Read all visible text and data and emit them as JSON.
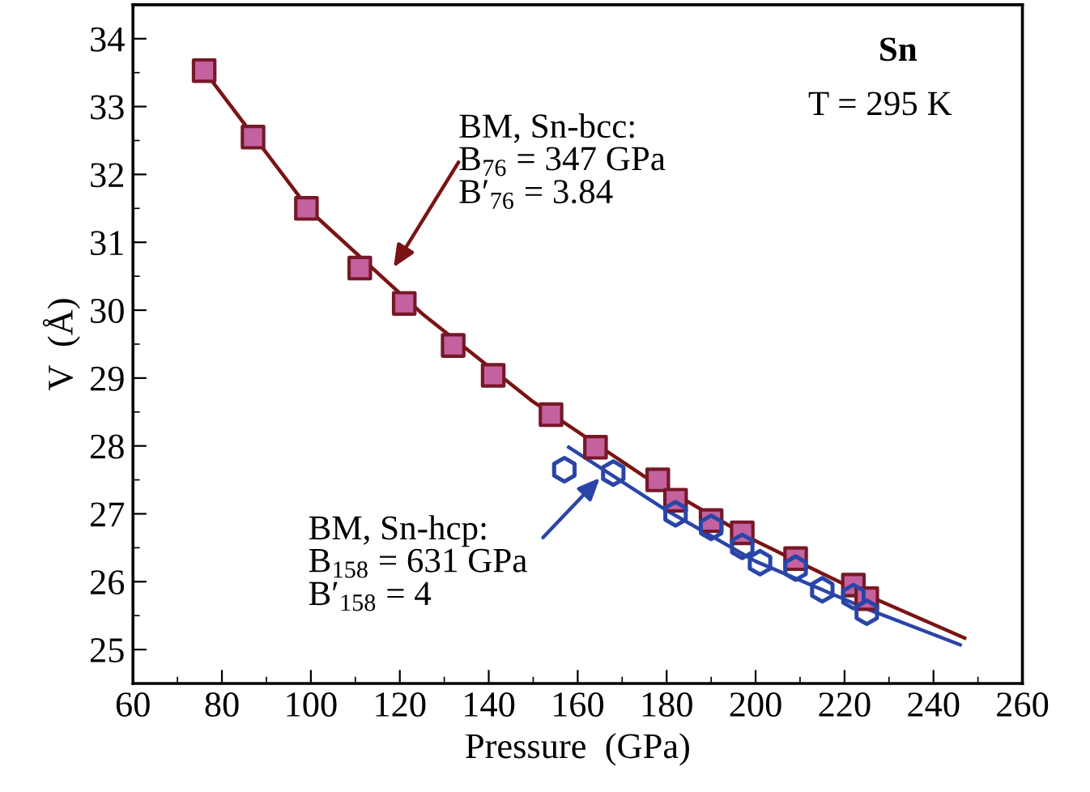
{
  "chart_data": {
    "type": "scatter",
    "xlabel": "Pressure  (GPa)",
    "ylabel": "V  (Å)",
    "xlim": [
      60,
      260
    ],
    "xticks": [
      60,
      80,
      100,
      120,
      140,
      160,
      180,
      200,
      220,
      240,
      260
    ],
    "ylim": [
      24.5,
      34.5
    ],
    "yticks": [
      25,
      26,
      27,
      28,
      29,
      30,
      31,
      32,
      33,
      34
    ],
    "grid": false,
    "series": [
      {
        "marker": "square",
        "color": "#c462a0",
        "x": [
          76,
          87,
          99,
          111,
          121,
          132,
          141,
          154,
          164,
          178,
          182,
          190,
          197,
          209,
          222,
          225
        ],
        "values": [
          33.53,
          32.55,
          31.5,
          30.62,
          30.1,
          29.48,
          29.04,
          28.46,
          27.98,
          27.5,
          27.2,
          26.9,
          26.72,
          26.34,
          25.95,
          25.75
        ]
      },
      {
        "color": "#2a45a8",
        "x": [
          157,
          168,
          182,
          190,
          197,
          201,
          209,
          215,
          222,
          225
        ],
        "values": [
          27.65,
          27.6,
          27.0,
          26.8,
          26.52,
          26.28,
          26.2,
          25.88,
          25.78,
          25.55
        ]
      },
      {
        "type": "line",
        "marker": "none",
        "color": "#7a1414",
        "x": [
          76,
          100,
          125,
          150,
          175,
          200,
          225,
          247
        ],
        "values": [
          33.53,
          31.45,
          29.95,
          28.65,
          27.55,
          26.6,
          25.8,
          25.17
        ]
      },
      {
        "type": "line",
        "marker": "none",
        "color": "#2a45a8",
        "x": [
          158,
          180,
          200,
          225,
          246
        ],
        "values": [
          27.98,
          27.05,
          26.3,
          25.6,
          25.07
        ]
      }
    ],
    "annotations": [
      "BM, Sn-bcc:\nB$_{76}$ = 347 GPa\nB′$_{76}$ = 3.84",
      "BM, Sn-hcp:\nB$_{158}$ = 631 GPa\nB′$_{158}$ = 4",
      "Sn",
      "T = 295 K"
    ]
  }
}
